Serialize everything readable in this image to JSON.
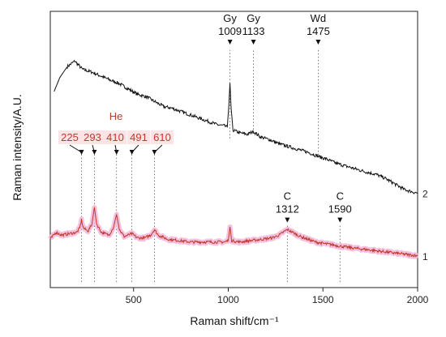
{
  "chart_data": {
    "type": "line",
    "xlabel": "Raman shift/cm⁻¹",
    "ylabel": "Raman intensity/A.U.",
    "xlim": [
      60,
      2000
    ],
    "x_ticks": [
      500,
      1000,
      1500,
      2000
    ],
    "grid": false,
    "colors": {
      "spectrum_2": "#111111",
      "spectrum_1": "#c0392b",
      "spectrum_1_band": "#f4b6d9",
      "red_label": "#c0392b"
    },
    "series": [
      {
        "name": "2",
        "description_points": [
          [
            80,
            0.71
          ],
          [
            110,
            0.76
          ],
          [
            150,
            0.8
          ],
          [
            190,
            0.82
          ],
          [
            230,
            0.79
          ],
          [
            280,
            0.78
          ],
          [
            330,
            0.765
          ],
          [
            380,
            0.75
          ],
          [
            420,
            0.74
          ],
          [
            470,
            0.72
          ],
          [
            520,
            0.7
          ],
          [
            570,
            0.69
          ],
          [
            620,
            0.67
          ],
          [
            660,
            0.655
          ],
          [
            700,
            0.65
          ],
          [
            740,
            0.64
          ],
          [
            780,
            0.63
          ],
          [
            820,
            0.62
          ],
          [
            860,
            0.61
          ],
          [
            900,
            0.6
          ],
          [
            940,
            0.59
          ],
          [
            980,
            0.585
          ],
          [
            995,
            0.58
          ],
          [
            1003,
            0.66
          ],
          [
            1009,
            0.74
          ],
          [
            1015,
            0.65
          ],
          [
            1025,
            0.57
          ],
          [
            1060,
            0.56
          ],
          [
            1100,
            0.555
          ],
          [
            1133,
            0.565
          ],
          [
            1170,
            0.545
          ],
          [
            1220,
            0.535
          ],
          [
            1270,
            0.52
          ],
          [
            1320,
            0.51
          ],
          [
            1370,
            0.5
          ],
          [
            1420,
            0.49
          ],
          [
            1475,
            0.475
          ],
          [
            1520,
            0.465
          ],
          [
            1570,
            0.45
          ],
          [
            1620,
            0.44
          ],
          [
            1670,
            0.43
          ],
          [
            1720,
            0.42
          ],
          [
            1780,
            0.41
          ],
          [
            1830,
            0.395
          ],
          [
            1880,
            0.375
          ],
          [
            1930,
            0.355
          ],
          [
            1980,
            0.345
          ],
          [
            2000,
            0.342
          ]
        ]
      },
      {
        "name": "1",
        "description_points": [
          [
            60,
            0.175
          ],
          [
            90,
            0.2
          ],
          [
            120,
            0.19
          ],
          [
            160,
            0.195
          ],
          [
            200,
            0.2
          ],
          [
            215,
            0.215
          ],
          [
            225,
            0.245
          ],
          [
            235,
            0.215
          ],
          [
            260,
            0.205
          ],
          [
            280,
            0.23
          ],
          [
            293,
            0.29
          ],
          [
            305,
            0.23
          ],
          [
            330,
            0.2
          ],
          [
            370,
            0.19
          ],
          [
            395,
            0.22
          ],
          [
            410,
            0.265
          ],
          [
            425,
            0.21
          ],
          [
            450,
            0.185
          ],
          [
            491,
            0.195
          ],
          [
            520,
            0.18
          ],
          [
            560,
            0.18
          ],
          [
            590,
            0.19
          ],
          [
            610,
            0.21
          ],
          [
            630,
            0.19
          ],
          [
            680,
            0.175
          ],
          [
            740,
            0.17
          ],
          [
            800,
            0.165
          ],
          [
            860,
            0.165
          ],
          [
            920,
            0.165
          ],
          [
            980,
            0.165
          ],
          [
            1000,
            0.17
          ],
          [
            1009,
            0.22
          ],
          [
            1018,
            0.17
          ],
          [
            1060,
            0.165
          ],
          [
            1120,
            0.17
          ],
          [
            1180,
            0.175
          ],
          [
            1230,
            0.18
          ],
          [
            1270,
            0.19
          ],
          [
            1300,
            0.205
          ],
          [
            1312,
            0.21
          ],
          [
            1340,
            0.2
          ],
          [
            1380,
            0.185
          ],
          [
            1420,
            0.175
          ],
          [
            1460,
            0.165
          ],
          [
            1500,
            0.16
          ],
          [
            1550,
            0.155
          ],
          [
            1590,
            0.15
          ],
          [
            1640,
            0.145
          ],
          [
            1700,
            0.14
          ],
          [
            1760,
            0.135
          ],
          [
            1820,
            0.13
          ],
          [
            1880,
            0.125
          ],
          [
            1940,
            0.12
          ],
          [
            2000,
            0.115
          ]
        ]
      }
    ],
    "series_labels": [
      {
        "text": "2",
        "y": 0.342
      },
      {
        "text": "1",
        "y": 0.115
      }
    ],
    "annotations_black": [
      {
        "label": "Gy",
        "value": "1009",
        "x": 1009,
        "line_from": 0.54,
        "line_to": 0.86
      },
      {
        "label": "Gy",
        "value": "1133",
        "x": 1133,
        "line_from": 0.56,
        "line_to": 0.86
      },
      {
        "label": "Wd",
        "value": "1475",
        "x": 1475,
        "line_from": 0.48,
        "line_to": 0.86
      },
      {
        "label": "C",
        "value": "1312",
        "x": 1312,
        "line_from": 0.02,
        "line_to": 0.23
      },
      {
        "label": "C",
        "value": "1590",
        "x": 1590,
        "line_from": 0.02,
        "line_to": 0.23
      }
    ],
    "annotation_group_label": "He",
    "annotations_red": [
      {
        "value": "225",
        "x": 225
      },
      {
        "value": "293",
        "x": 293
      },
      {
        "value": "410",
        "x": 410
      },
      {
        "value": "491",
        "x": 491
      },
      {
        "value": "610",
        "x": 610
      }
    ]
  }
}
